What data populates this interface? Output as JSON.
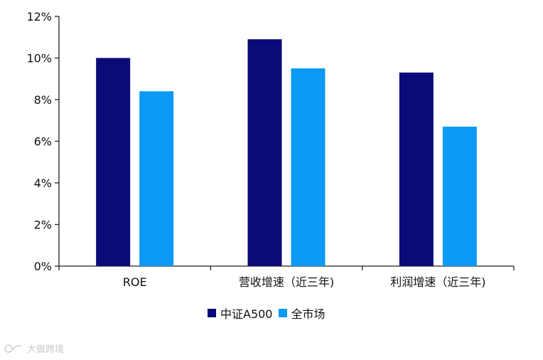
{
  "chart_data": {
    "type": "bar",
    "categories": [
      "ROE",
      "营收增速（近三年)",
      "利润增速（近三年)"
    ],
    "series": [
      {
        "name": "中证A500",
        "color": "#0a0a78",
        "values": [
          10.0,
          10.9,
          9.3
        ]
      },
      {
        "name": "全市场",
        "color": "#0a9af5",
        "values": [
          8.4,
          9.5,
          6.7
        ]
      }
    ],
    "ylim": [
      0,
      12
    ],
    "yticks": [
      0,
      2,
      4,
      6,
      8,
      10,
      12
    ],
    "ytick_labels": [
      "0%",
      "2%",
      "4%",
      "6%",
      "8%",
      "10%",
      "12%"
    ],
    "title": "",
    "xlabel": "",
    "ylabel": "",
    "legend_position": "bottom-center",
    "grid": false
  },
  "watermark": {
    "text": "大做跨境",
    "logo_icon": "bird-logo-icon"
  }
}
